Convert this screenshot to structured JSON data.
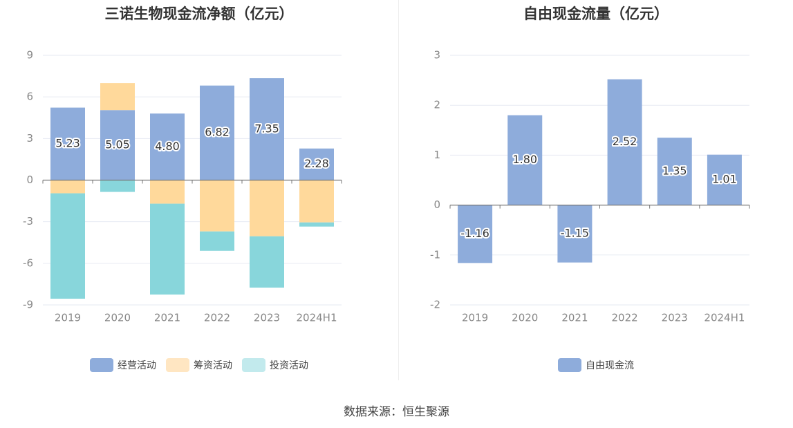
{
  "colors": {
    "operating": "#8eacdb",
    "financing": "#ffd99b",
    "investing": "#88d6db",
    "free_cash_flow": "#8eacdb",
    "legend_operating": "#8eacdb",
    "legend_financing": "#ffe6c2",
    "legend_investing": "#c2eaed",
    "grid": "#e6eaf2",
    "axis": "#777777",
    "tick_text": "#888888"
  },
  "chart_data": [
    {
      "type": "bar",
      "stacked": true,
      "title": "三诺生物现金流净额（亿元）",
      "categories": [
        "2019",
        "2020",
        "2021",
        "2022",
        "2023",
        "2024H1"
      ],
      "ylim": [
        -9,
        9
      ],
      "yticks": [
        "9",
        "6",
        "3",
        "0",
        "-3",
        "-6",
        "-9"
      ],
      "ytick_values": [
        9,
        6,
        3,
        0,
        -3,
        -6,
        -9
      ],
      "grid": true,
      "legend_position": "bottom",
      "series": [
        {
          "name": "经营活动",
          "values": [
            5.23,
            5.05,
            4.8,
            6.82,
            7.35,
            2.28
          ],
          "labels": [
            "5.23",
            "5.05",
            "4.80",
            "6.82",
            "7.35",
            "2.28"
          ]
        },
        {
          "name": "筹资活动",
          "values": [
            -0.95,
            1.95,
            -1.7,
            -3.7,
            -4.05,
            -3.05
          ]
        },
        {
          "name": "投资活动",
          "values": [
            -7.6,
            -0.85,
            -6.55,
            -1.4,
            -3.7,
            -0.3
          ]
        }
      ]
    },
    {
      "type": "bar",
      "title": "自由现金流量（亿元）",
      "categories": [
        "2019",
        "2020",
        "2021",
        "2022",
        "2023",
        "2024H1"
      ],
      "ylim": [
        -2,
        3
      ],
      "yticks": [
        "3",
        "2",
        "1",
        "0",
        "-1",
        "-2"
      ],
      "ytick_values": [
        3,
        2,
        1,
        0,
        -1,
        -2
      ],
      "grid": true,
      "legend_position": "bottom",
      "series": [
        {
          "name": "自由现金流",
          "values": [
            -1.16,
            1.8,
            -1.15,
            2.52,
            1.35,
            1.01
          ],
          "labels": [
            "-1.16",
            "1.80",
            "-1.15",
            "2.52",
            "1.35",
            "1.01"
          ]
        }
      ]
    }
  ],
  "source_text": "数据来源：恒生聚源"
}
